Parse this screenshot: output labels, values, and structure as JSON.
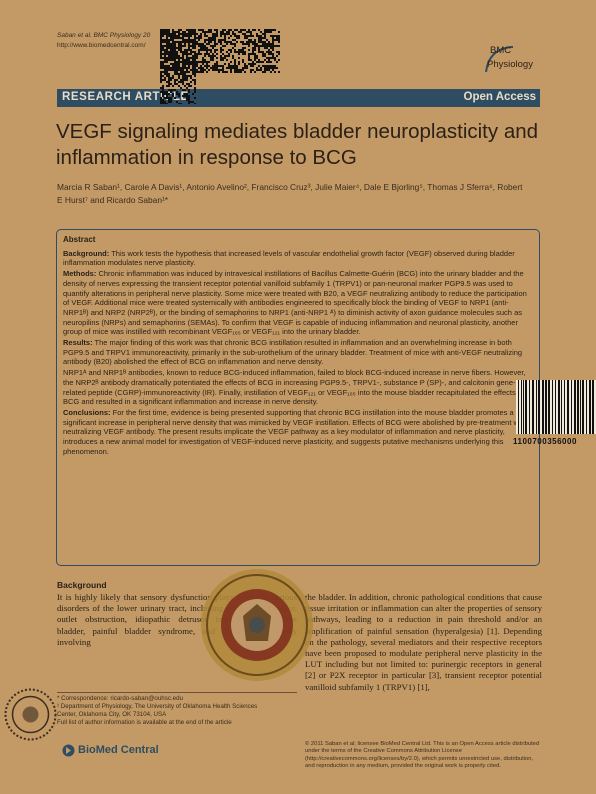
{
  "header": {
    "journal_line": "Saban et al. BMC Physiology 20",
    "url": "http://www.biomedcentral.com/"
  },
  "logo": {
    "line1": "BMC",
    "line2": "Physiology"
  },
  "banner": {
    "left": "RESEARCH ARTICLE",
    "right": "Open Access"
  },
  "title": "VEGF signaling mediates bladder neuroplasticity and inflammation in response to BCG",
  "authors": "Marcia R Saban¹, Carole A Davis¹, Antonio Avelino², Francisco Cruz³, Julie Maier⁴, Dale E Bjorling⁵, Thomas J Sferra⁶, Robert E Hurst⁷ and Ricardo Saban¹*",
  "abstract": {
    "heading": "Abstract",
    "background_label": "Background:",
    "background": "This work tests the hypothesis that increased levels of vascular endothelial growth factor (VEGF) observed during bladder inflammation modulates nerve plasticity.",
    "methods_label": "Methods:",
    "methods": "Chronic inflammation was induced by intravesical instillations of Bacillus Calmette-Guérin (BCG) into the urinary bladder and the density of nerves expressing the transient receptor potential vanilloid subfamily 1 (TRPV1) or pan-neuronal marker PGP9.5 was used to quantify alterations in peripheral nerve plasticity. Some mice were treated with B20, a VEGF neutralizing antibody to reduce the participation of VEGF. Additional mice were treated systemically with antibodies engineered to specifically block the binding of VEGF to NRP1 (anti-NRP1ᴮ) and NRP2 (NRP2ᴮ), or the binding of semaphorins to NRP1 (anti-NRP1 ᴬ) to diminish activity of axon guidance molecules such as neuropilins (NRPs) and semaphorins (SEMAs). To confirm that VEGF is capable of inducing inflammation and neuronal plasticity, another group of mice was instilled with recombinant VEGF₁₆₅ or VEGF₁₂₁ into the urinary bladder.",
    "results_label": "Results:",
    "results": "The major finding of this work was that chronic BCG instillation resulted in inflammation and an overwhelming increase in both PGP9.5 and TRPV1 immunoreactivity, primarily in the sub-urothelium of the urinary bladder. Treatment of mice with anti-VEGF neutralizing antibody (B20) abolished the effect of BCG on inflammation and nerve density.",
    "results2": "NRP1ᴬ and NRP1ᴮ antibodies, known to reduce BCG-induced inflammation, failed to block BCG-induced increase in nerve fibers. However, the NRP2ᴮ antibody dramatically potentiated the effects of BCG in increasing PGP9.5-, TRPV1-, substance P (SP)-, and calcitonin gene-related peptide (CGRP)-immunoreactivity (IR). Finally, instillation of VEGF₁₂₁ or VEGF₁₆₅ into the mouse bladder recapitulated the effects of BCG and resulted in a significant inflammation and increase in nerve density.",
    "conclusions_label": "Conclusions:",
    "conclusions": "For the first time, evidence is being presented supporting that chronic BCG instillation into the mouse bladder promotes a significant increase in peripheral nerve density that was mimicked by VEGF instillation. Effects of BCG were abolished by pre-treatment with neutralizing VEGF antibody. The present results implicate the VEGF pathway as a key modulator of inflammation and nerve plasticity, introduces a new animal model for investigation of VEGF-induced nerve plasticity, and suggests putative mechanisms underlying this phenomenon."
  },
  "body": {
    "background_heading": "Background",
    "left_col": "It is highly likely that sensory dysfunction plays a role in various disorders of the lower urinary tract, including neurogenic bladder, outlet obstruction, idiopathic detrusor instability, overactive bladder, painful bladder syndrome, and diabetic neuropathy involving",
    "right_col": "the bladder. In addition, chronic pathological conditions that cause tissue irritation or inflammation can alter the properties of sensory pathways, leading to a reduction in pain threshold and/or an amplification of painful sensation (hyperalgesia) [1]. Depending on the pathology, several mediators and their respective receptors have been proposed to modulate peripheral nerve plasticity in the LUT including but not limited to: purinergic receptors in general [2] or P2X receptor in particular [3], transient receptor potential vanilloid subfamily 1 (TRPV1) [1],"
  },
  "footnote": {
    "corr": "* Correspondence: ricardo-saban@ouhsc.edu",
    "affil1": "¹ Department of Physiology, The University of Oklahoma Health Sciences",
    "affil2": "Center, Oklahoma City, OK 73104, USA",
    "full": "Full list of author information is available at the end of the article"
  },
  "publisher": "BioMed Central",
  "license": "© 2011 Saban et al; licensee BioMed Central Ltd. This is an Open Access article distributed under the terms of the Creative Commons Attribution License (http://creativecommons.org/licenses/by/2.0), which permits unrestricted use, distribution, and reproduction in any medium, provided the original work is properly cited.",
  "barcode_number": "1100700356000",
  "colors": {
    "banner": "#2e4d63",
    "paper": "#c39a66",
    "text": "#2b2118"
  }
}
